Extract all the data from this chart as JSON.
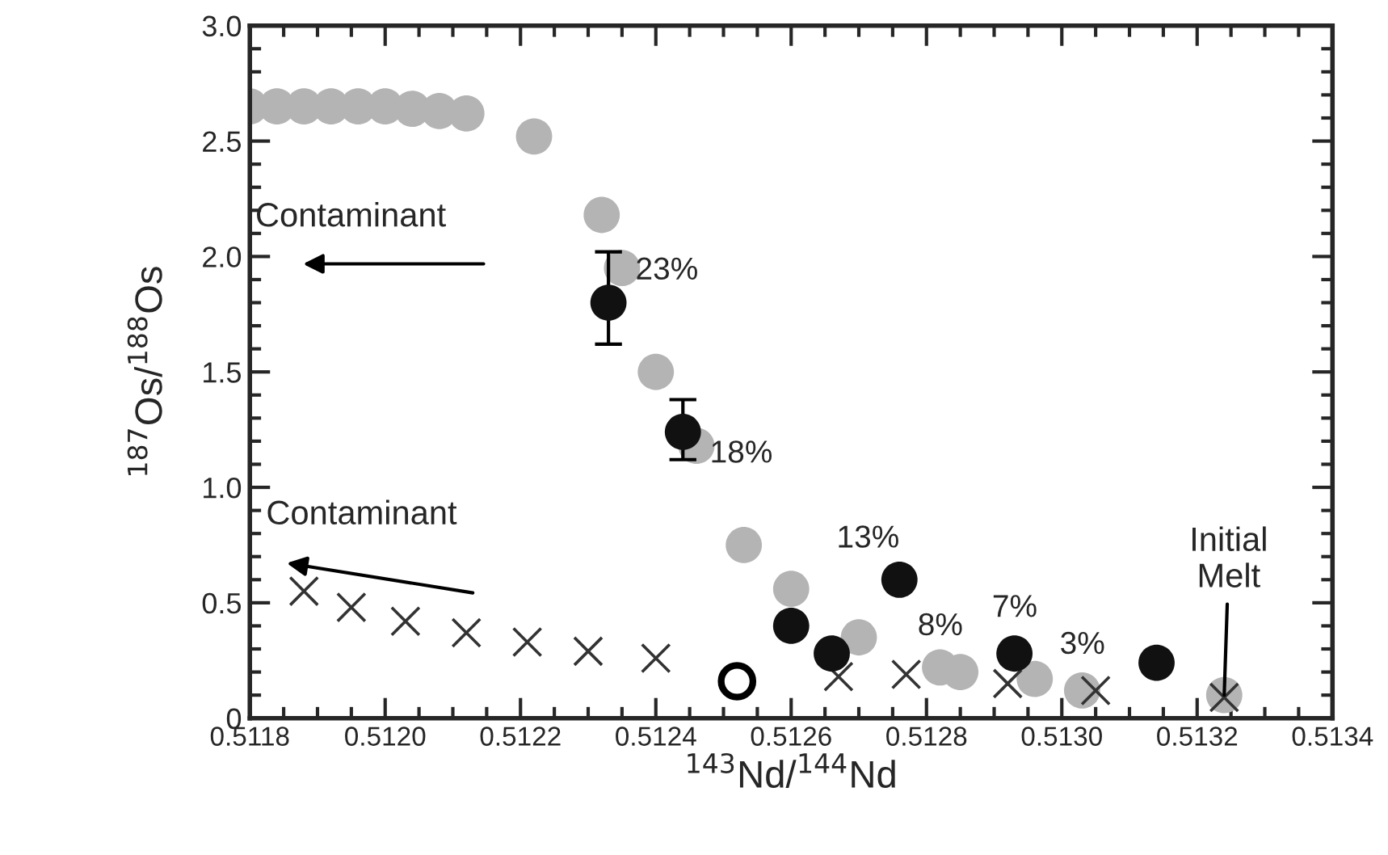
{
  "chart_data": {
    "type": "scatter",
    "xlabel": "$^{143}$Nd/$^{144}$Nd",
    "ylabel": "$^{187}$Os/$^{188}$Os",
    "xlim": [
      0.5118,
      0.5134
    ],
    "xticks": [
      {
        "value": 0.5118,
        "label": "0.5118"
      },
      {
        "value": 0.512,
        "label": "0.5120"
      },
      {
        "value": 0.5122,
        "label": "0.5122"
      },
      {
        "value": 0.5124,
        "label": "0.5124"
      },
      {
        "value": 0.5126,
        "label": "0.5126"
      },
      {
        "value": 0.5128,
        "label": "0.5128"
      },
      {
        "value": 0.513,
        "label": "0.5130"
      },
      {
        "value": 0.5132,
        "label": "0.5132"
      },
      {
        "value": 0.5134,
        "label": "0.5134"
      }
    ],
    "ylim": [
      0,
      3.0
    ],
    "yticks": [
      0,
      0.5,
      {
        "value": 1.0,
        "label": "1.0"
      },
      1.5,
      {
        "value": 2.0,
        "label": "2.0"
      },
      2.5,
      {
        "value": 3.0,
        "label": "3.0"
      }
    ],
    "grid": false,
    "legend": false,
    "series": [
      {
        "color": "#b4b4b4",
        "marker": "circle",
        "x": [
          0.5118,
          0.51184,
          0.51188,
          0.51192,
          0.51196,
          0.512,
          0.51204,
          0.51208,
          0.51212,
          0.51222,
          0.51232,
          0.51235,
          0.5124,
          0.51246,
          0.51253,
          0.5126,
          0.5127,
          0.51282,
          0.51285,
          0.51296,
          0.51303,
          0.51324
        ],
        "values": [
          2.65,
          2.65,
          2.65,
          2.65,
          2.65,
          2.65,
          2.64,
          2.63,
          2.62,
          2.52,
          2.18,
          1.95,
          1.5,
          1.18,
          0.75,
          0.56,
          0.35,
          0.22,
          0.2,
          0.17,
          0.12,
          0.1
        ]
      },
      {
        "color": "#333333",
        "marker": "cross",
        "x": [
          0.51188,
          0.51195,
          0.51203,
          0.51212,
          0.51221,
          0.5123,
          0.5124,
          0.51267,
          0.51277,
          0.51292,
          0.51305,
          0.51324
        ],
        "values": [
          0.55,
          0.48,
          0.42,
          0.37,
          0.33,
          0.29,
          0.26,
          0.18,
          0.19,
          0.15,
          0.12,
          0.09
        ]
      },
      {
        "color": "#111111",
        "marker": "circle",
        "x": [
          0.51233,
          0.51244,
          0.5126,
          0.51266,
          0.51276,
          0.51293,
          0.51314
        ],
        "values": [
          1.8,
          1.24,
          0.4,
          0.28,
          0.6,
          0.28,
          0.24
        ],
        "errors": [
          [
            1.62,
            2.02
          ],
          [
            1.12,
            1.38
          ],
          null,
          null,
          null,
          null,
          null
        ]
      },
      {
        "color": "#ffffff",
        "marker": "circle",
        "x": [
          0.51252
        ],
        "values": [
          0.16
        ]
      }
    ],
    "annotations": [
      "Contaminant",
      "Contaminant",
      {
        "text": "Initial\nMelt",
        "x": 0.51324,
        "y": 0.1
      },
      {
        "text": "23%",
        "x": 0.51233,
        "y": 1.8
      },
      {
        "text": "18%",
        "x": 0.51244,
        "y": 1.24
      },
      {
        "text": "13%",
        "x": 0.51276,
        "y": 0.6
      },
      {
        "text": "8%",
        "x": 0.51282,
        "y": 0.22
      },
      {
        "text": "7%",
        "x": 0.51293,
        "y": 0.28
      },
      {
        "text": "3%",
        "x": 0.51303,
        "y": 0.12
      }
    ]
  }
}
